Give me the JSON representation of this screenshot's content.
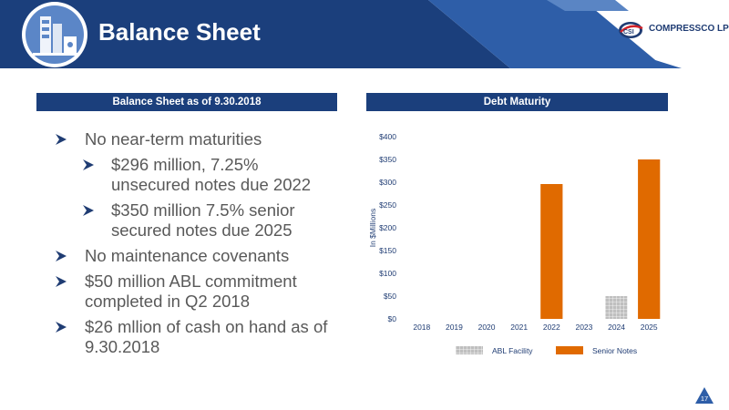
{
  "header": {
    "title": "Balance Sheet",
    "logo_text": "COMPRESSCO LP",
    "logo_badge": "CSI"
  },
  "sections": {
    "left_title": "Balance Sheet as of 9.30.2018",
    "right_title": "Debt Maturity"
  },
  "bullets": [
    {
      "level": 1,
      "text": "No near-term maturities"
    },
    {
      "level": 2,
      "text": "$296 million, 7.25% unsecured notes due 2022"
    },
    {
      "level": 2,
      "text": "$350 million 7.5% senior secured notes due 2025"
    },
    {
      "level": 1,
      "text": "No maintenance covenants"
    },
    {
      "level": 1,
      "text": "$50 million ABL commitment completed in Q2 2018"
    },
    {
      "level": 1,
      "text": "$26 mllion of cash on hand as of 9.30.2018"
    }
  ],
  "colors": {
    "brand_blue": "#1b3f7c",
    "senior_notes": "#e06a00",
    "abl_facility": "#bfbfbf"
  },
  "chart_data": {
    "type": "bar",
    "stacked": true,
    "categories": [
      "2018",
      "2019",
      "2020",
      "2021",
      "2022",
      "2023",
      "2024",
      "2025"
    ],
    "series": [
      {
        "name": "ABL Facility",
        "values": [
          0,
          0,
          0,
          0,
          0,
          0,
          50,
          0
        ],
        "color": "#bfbfbf"
      },
      {
        "name": "Senior Notes",
        "values": [
          0,
          0,
          0,
          0,
          296,
          0,
          0,
          350
        ],
        "color": "#e06a00"
      }
    ],
    "ylabel": "In $Millions",
    "ylim": [
      0,
      400
    ],
    "yticks": [
      "$0",
      "$50",
      "$100",
      "$150",
      "$200",
      "$250",
      "$300",
      "$350",
      "$400"
    ],
    "legend": "bottom"
  },
  "page_number": "17"
}
